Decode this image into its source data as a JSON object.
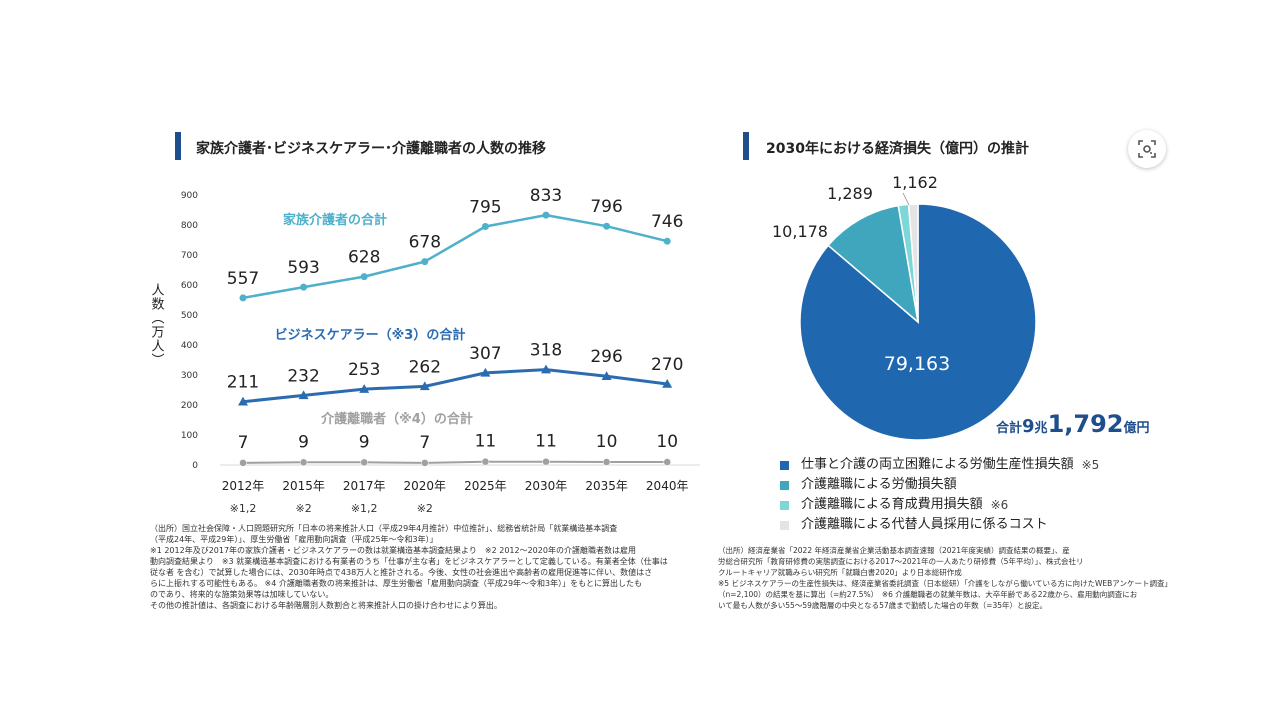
{
  "left": {
    "title": "家族介護者･ビジネスケアラー･介護離職者の人数の推移",
    "sources": [
      "（出所）国立社会保障・人口問題研究所「日本の将来推計人口（平成29年4月推計）中位推計」、総務省統計局「就業構造基本調査",
      "（平成24年、平成29年）」、厚生労働省「雇用動向調査（平成25年～令和3年）」",
      "※1 2012年及び2017年の家族介護者・ビジネスケアラーの数は就業構造基本調査結果より　※2 2012～2020年の介護離職者数は雇用",
      "動向調査結果より　※3 就業構造基本調査における有業者のうち「仕事が主な者」をビジネスケアラーとして定義している。有業者全体（仕事は",
      "従な者 を含む）で試算した場合には、2030年時点で438万人と推計される。今後、女性の社会進出や高齢者の雇用促進等に伴い、数値はさ",
      "らに上振れする可能性もある。 ※4 介護離職者数の将来推計は、厚生労働省「雇用動向調査（平成29年～令和3年）」をもとに算出したも",
      "のであり、将来的な施策効果等は加味していない。",
      "その他の推計値は、各調査における年齢階層別人数割合と将来推計人口の掛け合わせにより算出。"
    ]
  },
  "right": {
    "title": "2030年における経済損失（億円）の推計",
    "total": {
      "prefix": "合計",
      "chou": "9",
      "chou_unit": "兆",
      "oku": "1,792",
      "oku_unit": "億円"
    },
    "legend": [
      {
        "label": "仕事と介護の両立困難による労働生産性損失額",
        "note": "※5",
        "color": "#1f68b0"
      },
      {
        "label": "介護離職による労働損失額",
        "note": "",
        "color": "#3fa6be"
      },
      {
        "label": "介護離職による育成費用損失額",
        "note": "※6",
        "color": "#7fd6d6"
      },
      {
        "label": "介護離職による代替人員採用に係るコスト",
        "note": "",
        "color": "#e4e4e4"
      }
    ],
    "sources": [
      "（出所）経済産業省「2022 年経済産業省企業活動基本調査速報（2021年度実績）調査結果の概要」、産",
      "労総合研究所「教育研修費の実態調査における2017～2021年の一人あたり研修費（5年平均）」、株式会社リ",
      "クルートキャリア就職みらい研究所「就職白書2020」より日本総研作成",
      "※5 ビジネスケアラーの生産性損失は、経済産業省委託調査（日本総研）「介護をしながら働いている方に向けたWEBアンケート調査」",
      "（n=2,100）の結果を基に算出（=約27.5%）　※6 介護離職者の就業年数は、大卒年齢である22歳から、雇用動向調査にお",
      "いて最も人数が多い55～59歳階層の中央となる57歳まで勤続した場合の年数（=35年）と設定。"
    ]
  },
  "chart_data": [
    {
      "type": "line",
      "title": "家族介護者･ビジネスケアラー･介護離職者の人数の推移",
      "ylabel": "人数（万人）",
      "ylim": [
        0,
        900
      ],
      "yticks": [
        0,
        100,
        200,
        300,
        400,
        500,
        600,
        700,
        800,
        900
      ],
      "grid": false,
      "categories": [
        "2012年",
        "2015年",
        "2017年",
        "2020年",
        "2025年",
        "2030年",
        "2035年",
        "2040年"
      ],
      "category_notes": [
        "※1,2",
        "※2",
        "※1,2",
        "※2",
        "",
        "",
        "",
        ""
      ],
      "series": [
        {
          "name": "家族介護者の合計",
          "color": "#4fb0cc",
          "values": [
            557,
            593,
            628,
            678,
            795,
            833,
            796,
            746
          ]
        },
        {
          "name": "ビジネスケアラー（※3）の合計",
          "color": "#2b6cb0",
          "values": [
            211,
            232,
            253,
            262,
            307,
            318,
            296,
            270
          ]
        },
        {
          "name": "介護離職者（※4）の合計",
          "color": "#a0a0a0",
          "values": [
            7,
            9,
            9,
            7,
            11,
            11,
            10,
            10
          ]
        }
      ]
    },
    {
      "type": "pie",
      "title": "2030年における経済損失（億円）の推計",
      "labels": [
        "仕事と介護の両立困難による労働生産性損失額",
        "介護離職による労働損失額",
        "介護離職による育成費用損失額",
        "介護離職による代替人員採用に係るコスト"
      ],
      "values": [
        79163,
        10178,
        1289,
        1162
      ],
      "value_labels": [
        "79,163",
        "10,178",
        "1,289",
        "1,162"
      ],
      "colors": [
        "#1f68b0",
        "#3fa6be",
        "#7fd6d6",
        "#e4e4e4"
      ],
      "legend": "bottom"
    }
  ]
}
